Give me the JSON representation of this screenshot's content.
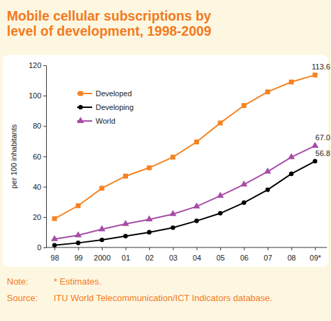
{
  "chart_data": {
    "type": "line",
    "title": "Mobile cellular subscriptions by level of development, 1998-2009",
    "y_label": "per 100 inhabitants",
    "categories": [
      "98",
      "99",
      "2000",
      "01",
      "02",
      "03",
      "04",
      "05",
      "06",
      "07",
      "08",
      "09*"
    ],
    "series": [
      {
        "name": "Developed",
        "color": "#f58220",
        "marker": "square",
        "values": [
          19,
          27.5,
          39,
          47,
          52.5,
          59.5,
          69.5,
          82,
          93.5,
          102.5,
          109,
          113.6
        ],
        "value_labels": [
          null,
          null,
          null,
          null,
          null,
          null,
          null,
          null,
          null,
          null,
          null,
          "113.6"
        ]
      },
      {
        "name": "Developing",
        "color": "#000000",
        "marker": "circle",
        "values": [
          1.5,
          3,
          5,
          7.5,
          10,
          13,
          17.5,
          22.5,
          29.5,
          38,
          48.5,
          56.8
        ],
        "value_labels": [
          null,
          null,
          null,
          null,
          null,
          null,
          null,
          null,
          null,
          null,
          null,
          "56.8"
        ]
      },
      {
        "name": "World",
        "color": "#a64ca6",
        "marker": "triangle",
        "values": [
          5.5,
          8,
          12,
          15.5,
          18.5,
          22,
          27,
          34,
          41.5,
          50,
          59.5,
          67.0
        ],
        "value_labels": [
          null,
          null,
          null,
          null,
          null,
          null,
          null,
          null,
          null,
          null,
          null,
          "67.0"
        ]
      }
    ],
    "ylim": [
      0,
      120
    ],
    "yticks": [
      0,
      20,
      40,
      60,
      80,
      100,
      120
    ],
    "grid": false,
    "legend": "top-left",
    "notes": [
      {
        "label": "Note:",
        "text": "* Estimates."
      },
      {
        "label": "Source:",
        "text": "ITU World Telecommunication/ICT Indicators database."
      }
    ]
  }
}
